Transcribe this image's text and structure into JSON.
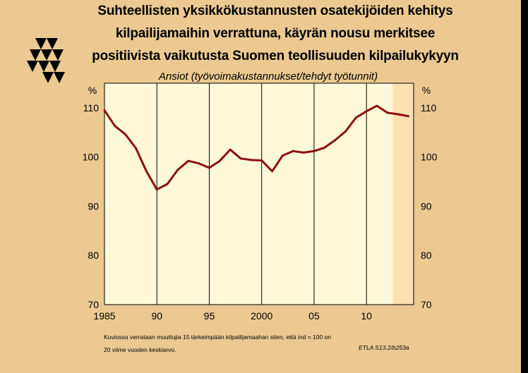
{
  "header": {
    "title_lines": [
      "Suhteellisten yksikkökustannusten osatekijöiden kehitys",
      "kilpailijamaihin verrattuna, käyrän nousu merkitsee",
      "positiivista vaikutusta Suomen teollisuuden kilpailukykyyn"
    ],
    "subtitle": "Ansiot (työvoimakustannukset/tehdyt työtunnit)"
  },
  "chart_data": {
    "type": "line",
    "title": "Ansiot (työvoimakustannukset/tehdyt työtunnit)",
    "ylabel": "%",
    "ylabel_right": "%",
    "xlabel": "",
    "xlim": [
      1985,
      2014.5
    ],
    "ylim": [
      70,
      115
    ],
    "yticks": [
      70,
      80,
      90,
      100,
      110
    ],
    "xticks": [
      1985,
      1990,
      1995,
      2000,
      2005,
      2010
    ],
    "xtick_labels": [
      "1985",
      "90",
      "95",
      "2000",
      "05",
      "10"
    ],
    "forecast_from": 2012.5,
    "grid": "vertical",
    "series": [
      {
        "x": [
          1985,
          1986,
          1987,
          1988,
          1989,
          1990,
          1991,
          1992,
          1993,
          1994,
          1995,
          1996,
          1997,
          1998,
          1999,
          2000,
          2001,
          2002,
          2003,
          2004,
          2005,
          2006,
          2007,
          2008,
          2009,
          2010,
          2011,
          2012,
          2013,
          2014
        ],
        "values": [
          109.5,
          106.3,
          104.6,
          101.8,
          97.1,
          93.4,
          94.5,
          97.4,
          99.2,
          98.7,
          97.8,
          99.2,
          101.5,
          99.7,
          99.4,
          99.3,
          97.1,
          100.3,
          101.2,
          100.9,
          101.2,
          101.9,
          103.4,
          105.2,
          108.0,
          109.3,
          110.4,
          109.0,
          108.7,
          108.3
        ]
      }
    ]
  },
  "footnote": {
    "line1": "Kuviossa verrataan muuttujia 15 tärkeimpään kilpailijamaahan siten, että ind = 100 on",
    "line2": "20 viime vuoden keskiarvo.",
    "source": "ETLA S13.2/b253a"
  },
  "colors": {
    "background": "#ebc991",
    "plot_area": "#fff8d9",
    "forecast_area": "#fce0ae",
    "line": "#8b1010",
    "border": "#000000"
  }
}
